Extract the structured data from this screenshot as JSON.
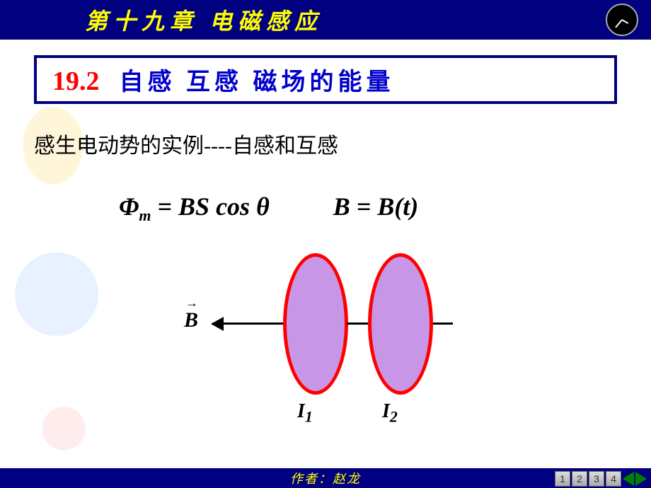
{
  "header": {
    "chapter_title": "第十九章  电磁感应"
  },
  "title": {
    "section_num": "19.2",
    "section_name": "自感   互感   磁场的能量"
  },
  "intro_text": "感生电动势的实例----自感和互感",
  "equations": {
    "eq1_lhs_symbol": "Φ",
    "eq1_lhs_sub": "m",
    "eq1_rhs": " = BS cos θ",
    "eq2": "B = B(t)"
  },
  "diagram": {
    "b_label": "B",
    "i1_sub": "1",
    "i2_sub": "2",
    "i_symbol": "I",
    "coil_color": "#c896e6",
    "coil_border": "#ff0000"
  },
  "footer": {
    "author": "作者：赵龙"
  },
  "nav": {
    "b1": "1",
    "b2": "2",
    "b3": "3",
    "b4": "4"
  },
  "colors": {
    "header_bg": "#000080",
    "chapter_text": "#ffff00",
    "section_num": "#ff0000",
    "section_name": "#0000cc",
    "border": "#000080"
  }
}
